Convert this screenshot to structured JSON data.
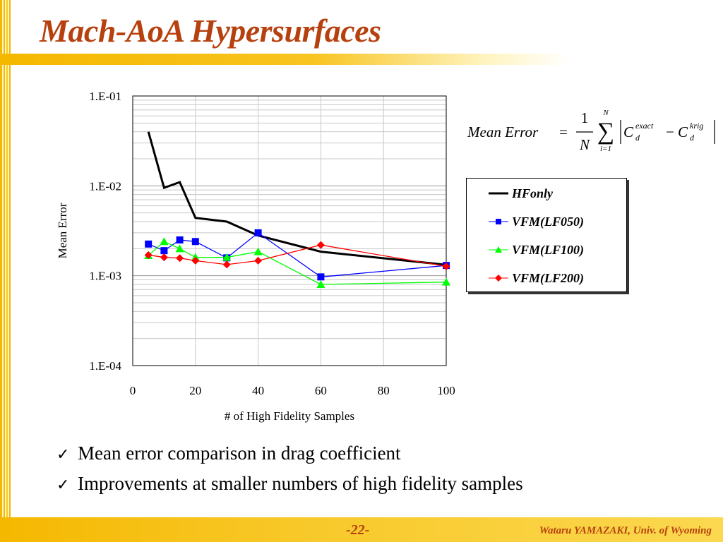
{
  "slide": {
    "title": "Mach-AoA Hypersurfaces",
    "page_number": "-22-",
    "author": "Wataru YAMAZAKI, Univ. of Wyoming"
  },
  "formula": {
    "lhs": "Mean Error",
    "equals": "=",
    "numerator": "1",
    "denominator": "N",
    "sum_upper": "N",
    "sum_lower": "i=1",
    "term1_base": "C",
    "term1_sup": "exact",
    "term1_sub": "d",
    "minus": "−",
    "term2_base": "C",
    "term2_sup": "krig",
    "term2_sub": "d"
  },
  "bullets": [
    "Mean error comparison in drag coefficient",
    "Improvements at smaller numbers of high fidelity samples"
  ],
  "colors": {
    "title": "#b7410e",
    "accent_bar": "#f5b800",
    "HFonly": "#000000",
    "VFM_LF050": "#0000ff",
    "VFM_LF100": "#00ff00",
    "VFM_LF200": "#ff0000"
  },
  "chart_data": {
    "type": "line",
    "title": "",
    "xlabel": "# of High Fidelity Samples",
    "ylabel": "Mean Error",
    "xlim": [
      0,
      100
    ],
    "ylim": [
      0.0001,
      0.1
    ],
    "yscale": "log",
    "xticks": [
      0,
      20,
      40,
      60,
      80,
      100
    ],
    "yticks": [
      0.1,
      0.01,
      0.001,
      0.0001
    ],
    "ytick_labels": [
      "1.E-01",
      "1.E-02",
      "1.E-03",
      "1.E-04"
    ],
    "grid": true,
    "legend": "right",
    "series": [
      {
        "name": "HFonly",
        "marker": "none",
        "color": "#000000",
        "x": [
          5,
          10,
          15,
          20,
          30,
          40,
          60,
          100
        ],
        "y": [
          0.04,
          0.0095,
          0.011,
          0.0044,
          0.004,
          0.0028,
          0.00185,
          0.00132
        ]
      },
      {
        "name": "VFM(LF050)",
        "marker": "square",
        "color": "#0000ff",
        "x": [
          5,
          10,
          15,
          20,
          30,
          40,
          60,
          100
        ],
        "y": [
          0.00225,
          0.0019,
          0.0025,
          0.0024,
          0.00158,
          0.003,
          0.00097,
          0.0013
        ]
      },
      {
        "name": "VFM(LF100)",
        "marker": "triangle",
        "color": "#00ff00",
        "x": [
          5,
          10,
          15,
          20,
          30,
          40,
          60,
          100
        ],
        "y": [
          0.00168,
          0.0024,
          0.002,
          0.0016,
          0.0016,
          0.00185,
          0.0008,
          0.00085
        ]
      },
      {
        "name": "VFM(LF200)",
        "marker": "diamond",
        "color": "#ff0000",
        "x": [
          5,
          10,
          15,
          20,
          30,
          40,
          60,
          100
        ],
        "y": [
          0.0017,
          0.0016,
          0.00157,
          0.00147,
          0.00133,
          0.00147,
          0.0022,
          0.00127
        ]
      }
    ]
  }
}
